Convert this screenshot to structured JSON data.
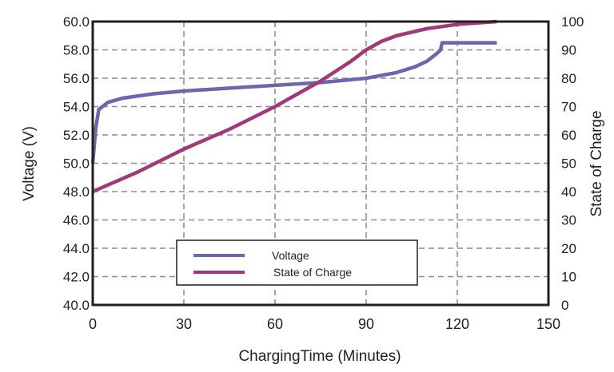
{
  "chart_data": {
    "type": "line",
    "title": "",
    "xlabel": "ChargingTime (Minutes)",
    "ylabel": "Voltage (V)",
    "y2label": "State of Charge",
    "xlim": [
      0,
      150
    ],
    "ylim": [
      40,
      60
    ],
    "y2lim": [
      0,
      100
    ],
    "xticks": [
      "0",
      "30",
      "60",
      "90",
      "120",
      "150"
    ],
    "yticks": [
      "40.0",
      "42.0",
      "44.0",
      "46.0",
      "48.0",
      "50.0",
      "52.0",
      "54.0",
      "56.0",
      "58.0",
      "60.0"
    ],
    "y2ticks": [
      "0",
      "10",
      "20",
      "30",
      "40",
      "50",
      "60",
      "70",
      "80",
      "90",
      "100"
    ],
    "grid": true,
    "legend_position": "bottom-center",
    "series": [
      {
        "name": "Voltage",
        "axis": "left",
        "color": "#6b66ad",
        "x": [
          0,
          1,
          2,
          5,
          10,
          20,
          30,
          45,
          60,
          75,
          90,
          100,
          106,
          110,
          113,
          114.5,
          115,
          133
        ],
        "y": [
          50.0,
          52.5,
          53.8,
          54.3,
          54.6,
          54.9,
          55.1,
          55.3,
          55.5,
          55.7,
          56.0,
          56.4,
          56.8,
          57.2,
          57.7,
          58.0,
          58.5,
          58.5
        ]
      },
      {
        "name": "State of Charge",
        "axis": "right",
        "color": "#a33878",
        "x": [
          0,
          15,
          30,
          45,
          60,
          75,
          85,
          90,
          95,
          100,
          110,
          120,
          133
        ],
        "y": [
          40,
          47,
          55,
          62,
          70,
          79,
          86,
          90,
          93,
          95,
          97.5,
          99,
          100
        ]
      }
    ]
  }
}
